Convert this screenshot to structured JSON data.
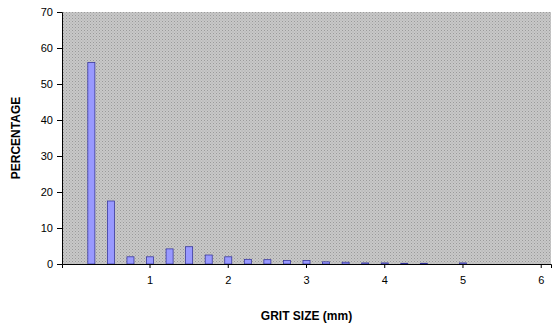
{
  "chart_data": {
    "type": "bar",
    "x_label": "GRIT SIZE (mm)",
    "y_label": "PERCENTAGE",
    "categories": [
      null,
      null,
      null,
      null,
      "1",
      null,
      null,
      null,
      "2",
      null,
      null,
      null,
      "3",
      null,
      null,
      null,
      "4",
      null,
      null,
      null,
      "5",
      null,
      null,
      null,
      "6"
    ],
    "values": [
      0,
      56,
      17.5,
      2,
      2,
      4.2,
      4.8,
      2.5,
      2,
      1.3,
      1.2,
      1,
      1,
      0.6,
      0.5,
      0.3,
      0.3,
      0.2,
      0.2,
      0,
      0.3,
      0,
      0,
      0,
      0
    ],
    "color": "#9999ff",
    "ylim": [
      0,
      70
    ],
    "yticks": [
      0,
      10,
      20,
      30,
      40,
      50,
      60,
      70
    ],
    "grid": false
  }
}
